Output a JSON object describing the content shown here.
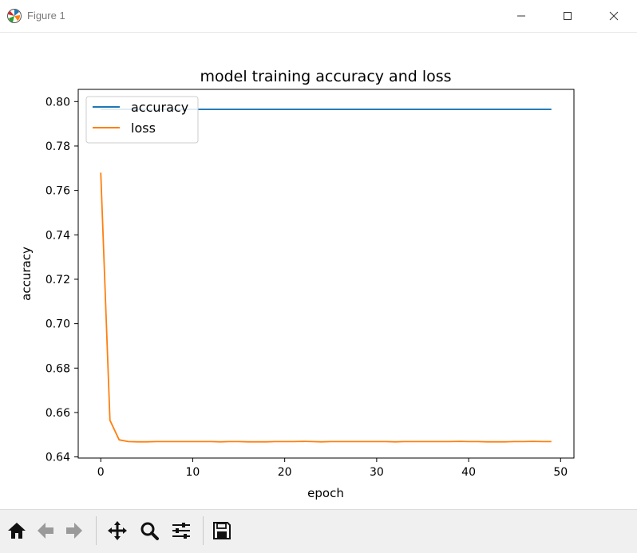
{
  "window": {
    "title": "Figure 1",
    "icons": [
      "matplotlib-logo-icon",
      "minimize-icon",
      "maximize-icon",
      "close-icon"
    ]
  },
  "toolbar": {
    "buttons": [
      "home-icon",
      "back-arrow-icon",
      "forward-arrow-icon",
      "pan-icon",
      "zoom-icon",
      "configure-subplots-icon",
      "save-icon"
    ]
  },
  "chart_data": {
    "type": "line",
    "title": "model training accuracy and loss",
    "xlabel": "epoch",
    "ylabel": "accuracy",
    "xlim": [
      -2.45,
      51.45
    ],
    "ylim": [
      0.6395,
      0.8055
    ],
    "xticks": [
      0,
      10,
      20,
      30,
      40,
      50
    ],
    "yticks": [
      0.64,
      0.66,
      0.68,
      0.7,
      0.72,
      0.74,
      0.76,
      0.78,
      0.8
    ],
    "xtick_labels": [
      "0",
      "10",
      "20",
      "30",
      "40",
      "50"
    ],
    "ytick_labels": [
      "0.64",
      "0.66",
      "0.68",
      "0.70",
      "0.72",
      "0.74",
      "0.76",
      "0.78",
      "0.80"
    ],
    "grid": false,
    "legend_position": "upper left",
    "x": [
      0,
      1,
      2,
      3,
      4,
      5,
      6,
      7,
      8,
      9,
      10,
      11,
      12,
      13,
      14,
      15,
      16,
      17,
      18,
      19,
      20,
      21,
      22,
      23,
      24,
      25,
      26,
      27,
      28,
      29,
      30,
      31,
      32,
      33,
      34,
      35,
      36,
      37,
      38,
      39,
      40,
      41,
      42,
      43,
      44,
      45,
      46,
      47,
      48,
      49
    ],
    "series": [
      {
        "name": "accuracy",
        "color": "#1f77b4",
        "values": [
          0.7965,
          0.7965,
          0.7965,
          0.7965,
          0.7965,
          0.7965,
          0.7965,
          0.7965,
          0.7965,
          0.7965,
          0.7965,
          0.7965,
          0.7965,
          0.7965,
          0.7965,
          0.7965,
          0.7965,
          0.7965,
          0.7965,
          0.7965,
          0.7965,
          0.7965,
          0.7965,
          0.7965,
          0.7965,
          0.7965,
          0.7965,
          0.7965,
          0.7965,
          0.7965,
          0.7965,
          0.7965,
          0.7965,
          0.7965,
          0.7965,
          0.7965,
          0.7965,
          0.7965,
          0.7965,
          0.7965,
          0.7965,
          0.7965,
          0.7965,
          0.7965,
          0.7965,
          0.7965,
          0.7965,
          0.7965,
          0.7965,
          0.7965
        ]
      },
      {
        "name": "loss",
        "color": "#ff7f0e",
        "values": [
          0.768,
          0.6565,
          0.6477,
          0.6469,
          0.6468,
          0.6468,
          0.6469,
          0.6469,
          0.6469,
          0.6469,
          0.6469,
          0.6469,
          0.6469,
          0.6468,
          0.6469,
          0.6469,
          0.6468,
          0.6468,
          0.6468,
          0.6469,
          0.6469,
          0.6469,
          0.647,
          0.6469,
          0.6468,
          0.6469,
          0.6469,
          0.6469,
          0.6469,
          0.6469,
          0.6469,
          0.6469,
          0.6468,
          0.6469,
          0.6469,
          0.6469,
          0.6469,
          0.6469,
          0.6469,
          0.647,
          0.6469,
          0.6469,
          0.6468,
          0.6468,
          0.6468,
          0.6469,
          0.6469,
          0.647,
          0.6469,
          0.6469
        ]
      }
    ]
  }
}
